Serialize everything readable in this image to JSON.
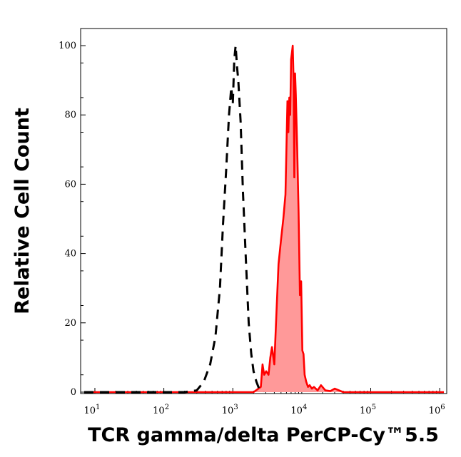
{
  "chart_data": {
    "type": "area",
    "title": "",
    "xlabel": "TCR gamma/delta PerCP-Cy™5.5",
    "ylabel": "Relative Cell Count",
    "x_scale": "log",
    "xlim": [
      7,
      1150000
    ],
    "ylim": [
      0,
      105
    ],
    "x_ticks": [
      {
        "value": 10,
        "base": "10",
        "exp": "1"
      },
      {
        "value": 100,
        "base": "10",
        "exp": "2"
      },
      {
        "value": 1000,
        "base": "10",
        "exp": "3"
      },
      {
        "value": 10000,
        "base": "10",
        "exp": "4"
      },
      {
        "value": 100000,
        "base": "10",
        "exp": "5"
      },
      {
        "value": 1000000,
        "base": "10",
        "exp": "6"
      }
    ],
    "y_ticks": [
      {
        "value": 0,
        "label": "0"
      },
      {
        "value": 20,
        "label": "20"
      },
      {
        "value": 40,
        "label": "40"
      },
      {
        "value": 60,
        "label": "60"
      },
      {
        "value": 80,
        "label": "80"
      },
      {
        "value": 100,
        "label": "100"
      }
    ],
    "grid": false,
    "colors": {
      "stained": "#ff0000",
      "stained_fill": "#ff9999",
      "control": "#000000"
    },
    "series": [
      {
        "style": "dashed-line",
        "x": [
          7,
          200,
          300,
          380,
          470,
          560,
          650,
          720,
          800,
          880,
          950,
          1000,
          1050,
          1100,
          1150,
          1200,
          1300,
          1400,
          1550,
          1700,
          1850,
          2000,
          2200,
          2400,
          2600,
          2800
        ],
        "y": [
          0,
          0,
          0.5,
          3,
          8,
          16,
          30,
          48,
          64,
          80,
          88,
          83,
          96,
          100,
          94,
          90,
          78,
          58,
          38,
          20,
          11,
          6,
          3,
          1,
          0.5,
          0
        ]
      },
      {
        "style": "filled-area",
        "x": [
          7,
          2000,
          2550,
          2700,
          2850,
          3050,
          3300,
          3500,
          3700,
          4000,
          4300,
          4600,
          5000,
          5400,
          5800,
          6200,
          6400,
          6600,
          6800,
          7000,
          7200,
          7400,
          7600,
          7800,
          8000,
          8200,
          8600,
          9000,
          9400,
          9800,
          10200,
          10600,
          11000,
          11600,
          12300,
          13000,
          14000,
          15000,
          17000,
          19000,
          22000,
          26000,
          30000,
          40000,
          60000,
          1150000
        ],
        "y": [
          0,
          0,
          1.5,
          8,
          5,
          6,
          5,
          10,
          13,
          8,
          23,
          37,
          44,
          50,
          57,
          84,
          75,
          85,
          80,
          96,
          98,
          100,
          90,
          62,
          92,
          86,
          70,
          52,
          28,
          32,
          12,
          11,
          5,
          3,
          1.5,
          2,
          1,
          1.5,
          0.5,
          2,
          0.5,
          0.3,
          1,
          0,
          0,
          0
        ]
      }
    ]
  }
}
